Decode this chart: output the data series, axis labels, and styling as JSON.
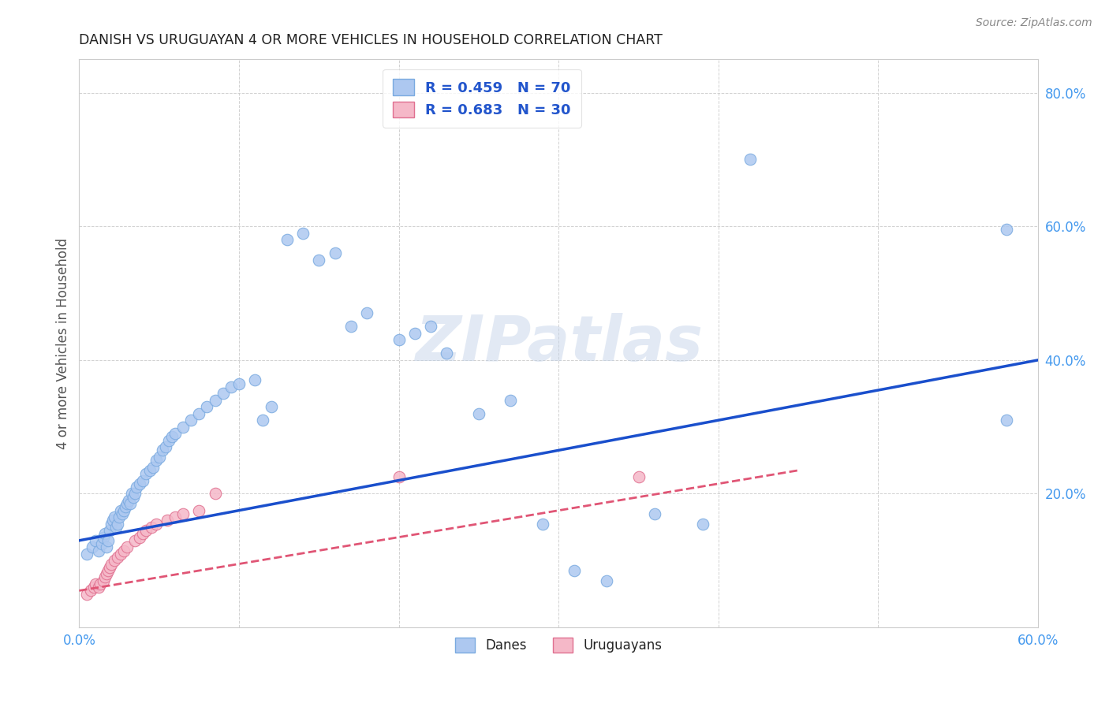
{
  "title": "DANISH VS URUGUAYAN 4 OR MORE VEHICLES IN HOUSEHOLD CORRELATION CHART",
  "source": "Source: ZipAtlas.com",
  "ylabel": "4 or more Vehicles in Household",
  "xlim": [
    0.0,
    0.6
  ],
  "ylim": [
    0.0,
    0.85
  ],
  "xticks": [
    0.0,
    0.1,
    0.2,
    0.3,
    0.4,
    0.5,
    0.6
  ],
  "xtick_labels_show": [
    "0.0%",
    "",
    "",
    "",
    "",
    "",
    "60.0%"
  ],
  "yticks": [
    0.0,
    0.2,
    0.4,
    0.6,
    0.8
  ],
  "ytick_labels_show": [
    "",
    "20.0%",
    "40.0%",
    "60.0%",
    "80.0%"
  ],
  "danes_color": "#adc8f0",
  "danes_edge": "#7aaae0",
  "uruguayans_color": "#f5b8c8",
  "uruguayans_edge": "#e07090",
  "line_danes_color": "#1a4fcc",
  "line_uruguayans_color": "#e05575",
  "danes_R": 0.459,
  "danes_N": 70,
  "uruguayans_R": 0.683,
  "uruguayans_N": 30,
  "background_color": "#ffffff",
  "grid_color": "#cccccc",
  "watermark": "ZIPatlas",
  "danes_line_start_y": 0.13,
  "danes_line_end_y": 0.4,
  "uruguayans_line_start_y": 0.055,
  "uruguayans_line_end_y": 0.235,
  "uruguayans_line_end_x": 0.45,
  "danes_x": [
    0.005,
    0.008,
    0.01,
    0.012,
    0.014,
    0.015,
    0.016,
    0.017,
    0.018,
    0.019,
    0.02,
    0.021,
    0.022,
    0.023,
    0.024,
    0.025,
    0.026,
    0.027,
    0.028,
    0.029,
    0.03,
    0.031,
    0.032,
    0.033,
    0.034,
    0.035,
    0.036,
    0.038,
    0.04,
    0.042,
    0.044,
    0.046,
    0.048,
    0.05,
    0.052,
    0.054,
    0.056,
    0.058,
    0.06,
    0.065,
    0.07,
    0.075,
    0.08,
    0.085,
    0.09,
    0.095,
    0.1,
    0.11,
    0.115,
    0.12,
    0.13,
    0.14,
    0.15,
    0.16,
    0.17,
    0.18,
    0.2,
    0.21,
    0.22,
    0.23,
    0.25,
    0.27,
    0.29,
    0.31,
    0.33,
    0.36,
    0.39,
    0.42,
    0.58,
    0.58
  ],
  "danes_y": [
    0.11,
    0.12,
    0.13,
    0.115,
    0.125,
    0.135,
    0.14,
    0.12,
    0.13,
    0.145,
    0.155,
    0.16,
    0.165,
    0.15,
    0.155,
    0.165,
    0.175,
    0.17,
    0.175,
    0.18,
    0.185,
    0.19,
    0.185,
    0.2,
    0.195,
    0.2,
    0.21,
    0.215,
    0.22,
    0.23,
    0.235,
    0.24,
    0.25,
    0.255,
    0.265,
    0.27,
    0.28,
    0.285,
    0.29,
    0.3,
    0.31,
    0.32,
    0.33,
    0.34,
    0.35,
    0.36,
    0.365,
    0.37,
    0.31,
    0.33,
    0.58,
    0.59,
    0.55,
    0.56,
    0.45,
    0.47,
    0.43,
    0.44,
    0.45,
    0.41,
    0.32,
    0.34,
    0.155,
    0.085,
    0.07,
    0.17,
    0.155,
    0.7,
    0.595,
    0.31
  ],
  "uruguayans_x": [
    0.005,
    0.007,
    0.009,
    0.01,
    0.012,
    0.013,
    0.015,
    0.016,
    0.017,
    0.018,
    0.019,
    0.02,
    0.022,
    0.024,
    0.026,
    0.028,
    0.03,
    0.035,
    0.038,
    0.04,
    0.042,
    0.045,
    0.048,
    0.055,
    0.06,
    0.065,
    0.075,
    0.085,
    0.2,
    0.35
  ],
  "uruguayans_y": [
    0.05,
    0.055,
    0.06,
    0.065,
    0.06,
    0.065,
    0.07,
    0.075,
    0.08,
    0.085,
    0.09,
    0.095,
    0.1,
    0.105,
    0.11,
    0.115,
    0.12,
    0.13,
    0.135,
    0.14,
    0.145,
    0.15,
    0.155,
    0.16,
    0.165,
    0.17,
    0.175,
    0.2,
    0.225,
    0.225
  ]
}
